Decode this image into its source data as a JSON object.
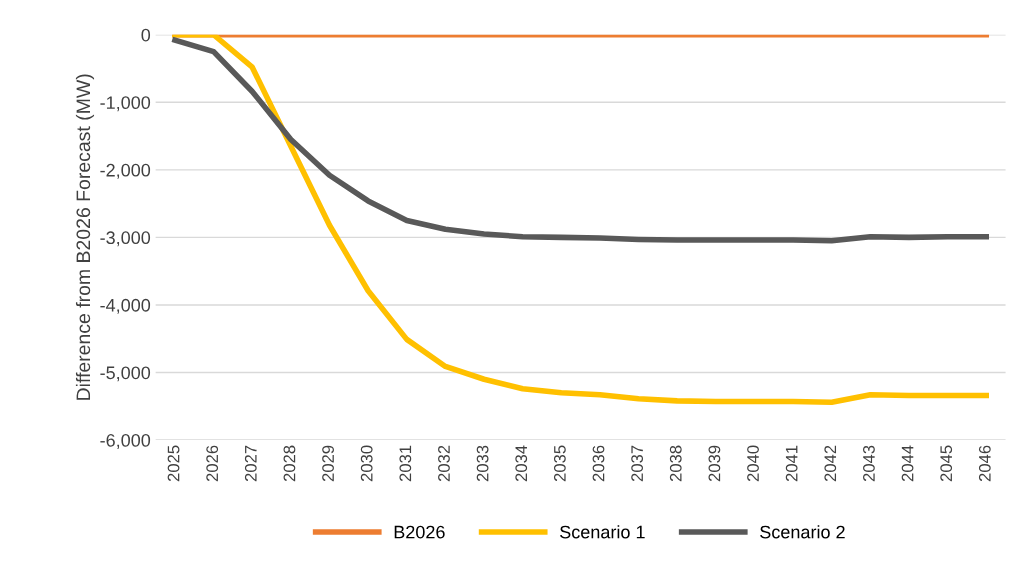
{
  "chart_data": {
    "type": "line",
    "ylabel": "Difference from B2026 Forecast (MW)",
    "categories": [
      "2025",
      "2026",
      "2027",
      "2028",
      "2029",
      "2030",
      "2031",
      "2032",
      "2033",
      "2034",
      "2035",
      "2036",
      "2037",
      "2038",
      "2039",
      "2040",
      "2041",
      "2042",
      "2043",
      "2044",
      "2045",
      "2046"
    ],
    "series": [
      {
        "name": "B2026",
        "color": "#ed7d31",
        "values": [
          0,
          0,
          0,
          0,
          0,
          0,
          0,
          0,
          0,
          0,
          0,
          0,
          0,
          0,
          0,
          0,
          0,
          0,
          0,
          0,
          0,
          0
        ]
      },
      {
        "name": "Scenario 1",
        "color": "#ffc000",
        "values": [
          0,
          0,
          -480,
          -1650,
          -2820,
          -3790,
          -4510,
          -4910,
          -5100,
          -5240,
          -5300,
          -5330,
          -5390,
          -5420,
          -5430,
          -5430,
          -5430,
          -5440,
          -5330,
          -5340,
          -5340,
          -5340
        ]
      },
      {
        "name": "Scenario 2",
        "color": "#595959",
        "values": [
          -80,
          -250,
          -840,
          -1550,
          -2080,
          -2460,
          -2750,
          -2880,
          -2950,
          -2990,
          -3000,
          -3010,
          -3030,
          -3040,
          -3040,
          -3040,
          -3040,
          -3050,
          -2990,
          -3000,
          -2990,
          -2990
        ]
      }
    ],
    "ylim": [
      -6000,
      0
    ],
    "yticks": [
      {
        "value": -6000,
        "label": "-6,000"
      },
      {
        "value": -5000,
        "label": "-5,000"
      },
      {
        "value": -4000,
        "label": "-4,000"
      },
      {
        "value": -3000,
        "label": "-3,000"
      },
      {
        "value": -2000,
        "label": "-2,000"
      },
      {
        "value": -1000,
        "label": "-1,000"
      },
      0
    ],
    "grid": "y",
    "legend": "bottom",
    "marker": "none",
    "line_style": "solid"
  }
}
